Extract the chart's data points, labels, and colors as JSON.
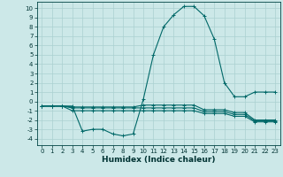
{
  "xlabel": "Humidex (Indice chaleur)",
  "xlim": [
    -0.5,
    23.5
  ],
  "ylim": [
    -4.7,
    10.7
  ],
  "xticks": [
    0,
    1,
    2,
    3,
    4,
    5,
    6,
    7,
    8,
    9,
    10,
    11,
    12,
    13,
    14,
    15,
    16,
    17,
    18,
    19,
    20,
    21,
    22,
    23
  ],
  "yticks": [
    -4,
    -3,
    -2,
    -1,
    0,
    1,
    2,
    3,
    4,
    5,
    6,
    7,
    8,
    9,
    10
  ],
  "bg_color": "#cce8e8",
  "grid_color": "#aad0d0",
  "line_color": "#006868",
  "line1_x": [
    0,
    1,
    2,
    3,
    4,
    5,
    6,
    7,
    8,
    9,
    10,
    11,
    12,
    13,
    14,
    15,
    16,
    17,
    18,
    19,
    20,
    21,
    22,
    23
  ],
  "line1_y": [
    -0.5,
    -0.5,
    -0.5,
    -0.5,
    -3.2,
    -3.0,
    -3.0,
    -3.5,
    -3.7,
    -3.5,
    0.2,
    5.0,
    8.0,
    9.3,
    10.2,
    10.2,
    9.2,
    6.7,
    2.0,
    0.5,
    0.5,
    1.0,
    1.0,
    1.0
  ],
  "line2_x": [
    0,
    1,
    2,
    3,
    4,
    5,
    6,
    7,
    8,
    9,
    10,
    11,
    12,
    13,
    14,
    15,
    16,
    17,
    18,
    19,
    20,
    21,
    22,
    23
  ],
  "line2_y": [
    -0.5,
    -0.5,
    -0.5,
    -0.6,
    -0.6,
    -0.6,
    -0.6,
    -0.6,
    -0.6,
    -0.6,
    -0.4,
    -0.4,
    -0.4,
    -0.4,
    -0.4,
    -0.4,
    -0.9,
    -0.9,
    -0.9,
    -1.2,
    -1.2,
    -2.0,
    -2.0,
    -2.0
  ],
  "line3_x": [
    0,
    1,
    2,
    3,
    4,
    5,
    6,
    7,
    8,
    9,
    10,
    11,
    12,
    13,
    14,
    15,
    16,
    17,
    18,
    19,
    20,
    21,
    22,
    23
  ],
  "line3_y": [
    -0.5,
    -0.5,
    -0.5,
    -0.7,
    -0.7,
    -0.7,
    -0.7,
    -0.7,
    -0.7,
    -0.7,
    -0.7,
    -0.7,
    -0.7,
    -0.7,
    -0.7,
    -0.7,
    -1.1,
    -1.1,
    -1.1,
    -1.4,
    -1.4,
    -2.1,
    -2.1,
    -2.1
  ],
  "line4_x": [
    0,
    1,
    2,
    3,
    4,
    5,
    6,
    7,
    8,
    9,
    10,
    11,
    12,
    13,
    14,
    15,
    16,
    17,
    18,
    19,
    20,
    21,
    22,
    23
  ],
  "line4_y": [
    -0.5,
    -0.5,
    -0.5,
    -1.0,
    -1.0,
    -1.0,
    -1.0,
    -1.0,
    -1.0,
    -1.0,
    -1.0,
    -1.0,
    -1.0,
    -1.0,
    -1.0,
    -1.0,
    -1.3,
    -1.3,
    -1.3,
    -1.6,
    -1.6,
    -2.2,
    -2.2,
    -2.2
  ],
  "tick_fontsize": 5,
  "xlabel_fontsize": 6.5,
  "marker_size": 2.5,
  "line_width": 0.8
}
